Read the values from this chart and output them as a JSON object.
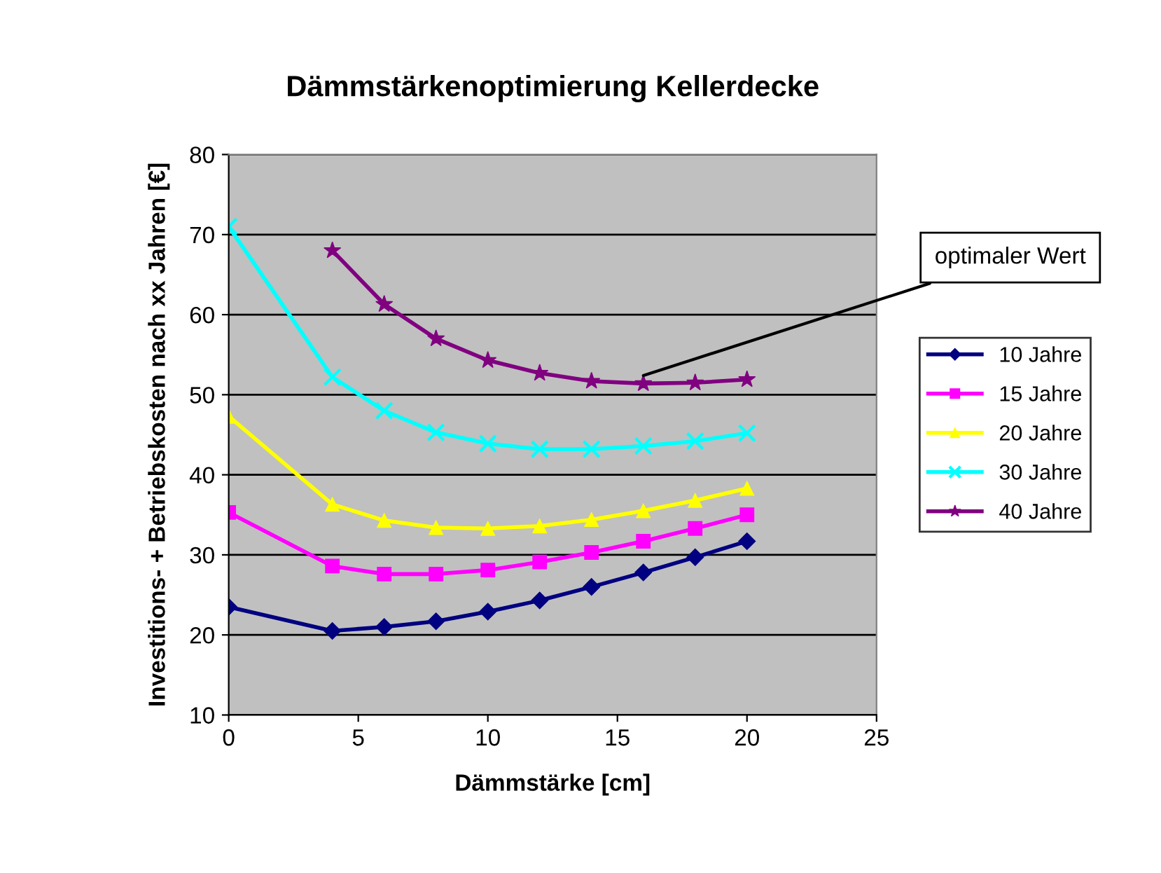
{
  "chart_data": {
    "type": "line",
    "title": "Dämmstärkenoptimierung Kellerdecke",
    "xlabel": "Dämmstärke [cm]",
    "ylabel": "Investitions- + Betriebskosten nach xx Jahren [€]",
    "x": [
      0,
      4,
      6,
      8,
      10,
      12,
      14,
      16,
      18,
      20
    ],
    "series": [
      {
        "name": "10 Jahre",
        "color": "#000080",
        "marker": "diamond",
        "values": [
          23.5,
          20.5,
          21,
          21.7,
          22.9,
          24.3,
          26,
          27.8,
          29.7,
          31.7
        ]
      },
      {
        "name": "15 Jahre",
        "color": "#ff00ff",
        "marker": "square",
        "values": [
          35.3,
          28.6,
          27.6,
          27.6,
          28.1,
          29.1,
          30.3,
          31.7,
          33.3,
          35
        ]
      },
      {
        "name": "20 Jahre",
        "color": "#ffff00",
        "marker": "triangle",
        "values": [
          47.3,
          36.3,
          34.3,
          33.4,
          33.3,
          33.6,
          34.4,
          35.5,
          36.8,
          38.3
        ]
      },
      {
        "name": "30 Jahre",
        "color": "#00ffff",
        "marker": "cross",
        "values": [
          71,
          52.2,
          48,
          45.3,
          43.9,
          43.2,
          43.2,
          43.6,
          44.2,
          45.2
        ]
      },
      {
        "name": "40 Jahre",
        "color": "#800080",
        "marker": "star",
        "values": [
          null,
          68,
          61.3,
          57,
          54.3,
          52.7,
          51.7,
          51.4,
          51.5,
          51.9
        ]
      }
    ],
    "annotations": [
      {
        "text": "optimaler Wert",
        "x": 16,
        "y": 51.4
      }
    ],
    "xlim": [
      0,
      25
    ],
    "xticks": [
      0,
      5,
      10,
      15,
      20,
      25
    ],
    "ylim": [
      10,
      80
    ],
    "yticks": [
      10,
      20,
      30,
      40,
      50,
      60,
      70,
      80
    ],
    "grid": "y",
    "legend": "right",
    "line_style": "solid"
  }
}
